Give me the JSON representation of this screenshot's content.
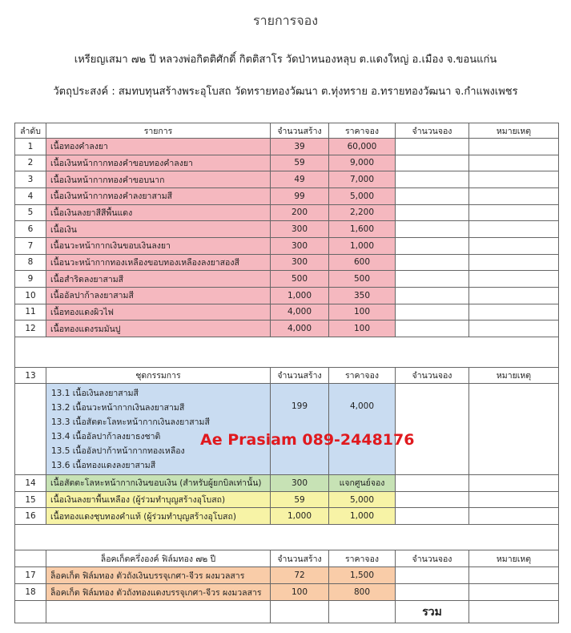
{
  "header": {
    "title": "รายการจอง",
    "subtitle": "เหรียญเสมา ๗๒ ปี หลวงพ่อกิตติศักดิ์ กิตติสาโร วัดป่าหนองหลุบ ต.แดงใหญ่ อ.เมือง จ.ขอนแก่น",
    "purpose": "วัตถุประสงค์ : สมทบทุนสร้างพระอุโบสถ วัดทรายทองวัฒนา ต.ทุ่งทราย อ.ทรายทองวัฒนา จ.กำแพงเพชร"
  },
  "table1": {
    "columns": [
      "ลำดับ",
      "รายการ",
      "จำนวนสร้าง",
      "ราคาจอง",
      "จำนวนจอง",
      "หมายเหตุ"
    ],
    "rows": [
      [
        "1",
        "เนื้อทองคำลงยา",
        "39",
        "60,000"
      ],
      [
        "2",
        "เนื้อเงินหน้ากากทองคำขอบทองคำลงยา",
        "59",
        "9,000"
      ],
      [
        "3",
        "เนื้อเงินหน้ากากทองคำขอบนาก",
        "49",
        "7,000"
      ],
      [
        "4",
        "เนื้อเงินหน้ากากทองคำลงยาสามสี",
        "99",
        "5,000"
      ],
      [
        "5",
        "เนื้อเงินลงยาสีสีพื้นแดง",
        "200",
        "2,200"
      ],
      [
        "6",
        "เนื้อเงิน",
        "300",
        "1,600"
      ],
      [
        "7",
        "เนื้อนวะหน้ากากเงินขอบเงินลงยา",
        "300",
        "1,000"
      ],
      [
        "8",
        "เนื้อนวะหน้ากากทองเหลืองขอบทองเหลืองลงยาสองสี",
        "300",
        "600"
      ],
      [
        "9",
        "เนื้อสำริดลงยาสามสี",
        "500",
        "500"
      ],
      [
        "10",
        "เนื้ออัลปาก้าลงยาสามสี",
        "1,000",
        "350"
      ],
      [
        "11",
        "เนื้อทองแดงผิวไฟ",
        "4,000",
        "100"
      ],
      [
        "12",
        "เนื้อทองแดงรมมันปู",
        "4,000",
        "100"
      ]
    ]
  },
  "table2": {
    "number": "13",
    "columns": [
      "ชุดกรรมการ",
      "จำนวนสร้าง",
      "ราคาจอง",
      "จำนวนจอง",
      "หมายเหตุ"
    ],
    "items": [
      "13.1 เนื้อเงินลงยาสามสี",
      "13.2 เนื้อนวะหน้ากากเงินลงยาสามสี",
      "13.3 เนื้อสัตตะโลหะหน้ากากเงินลงยาสามสี",
      "13.4 เนื้ออัลปาก้าลงยาธงชาติ",
      "13.5 เนื้ออัลปาก้าหน้ากากทองเหลือง",
      "13.6 เนื้อทองแดงลงยาสามสี"
    ],
    "quantity": "199",
    "price": "4,000",
    "rows": [
      [
        "14",
        "เนื้อสัตตะโลหะหน้ากากเงินขอบเงิน (สำหรับผู้ยกบิลเท่านั้น)",
        "300",
        "แจกศูนย์จอง"
      ],
      [
        "15",
        "เนื้อเงินลงยาพื้นเหลือง (ผู้ร่วมทำบุญสร้างอุโบสถ)",
        "59",
        "5,000"
      ],
      [
        "16",
        "เนื้อทองแดงชุบทองคำแท้ (ผู้ร่วมทำบุญสร้างอุโบสถ)",
        "1,000",
        "1,000"
      ]
    ]
  },
  "table3": {
    "columns": [
      "ล็อคเก็ตครึ่งองค์ ฟิล์มทอง ๗๒ ปี",
      "จำนวนสร้าง",
      "ราคาจอง",
      "จำนวนจอง",
      "หมายเหตุ"
    ],
    "rows": [
      [
        "17",
        "ล็อคเก็ต ฟิล์มทอง ตัวถังเงินบรรจุเกศา-จีวร ผงมวลสาร",
        "72",
        "1,500"
      ],
      [
        "18",
        "ล็อคเก็ต ฟิล์มทอง ตัวถังทองแดงบรรจุเกศา-จีวร ผงมวลสาร",
        "100",
        "800"
      ]
    ],
    "total_label": "รวม"
  },
  "watermark": "Ae Prasiam 089-2448176"
}
